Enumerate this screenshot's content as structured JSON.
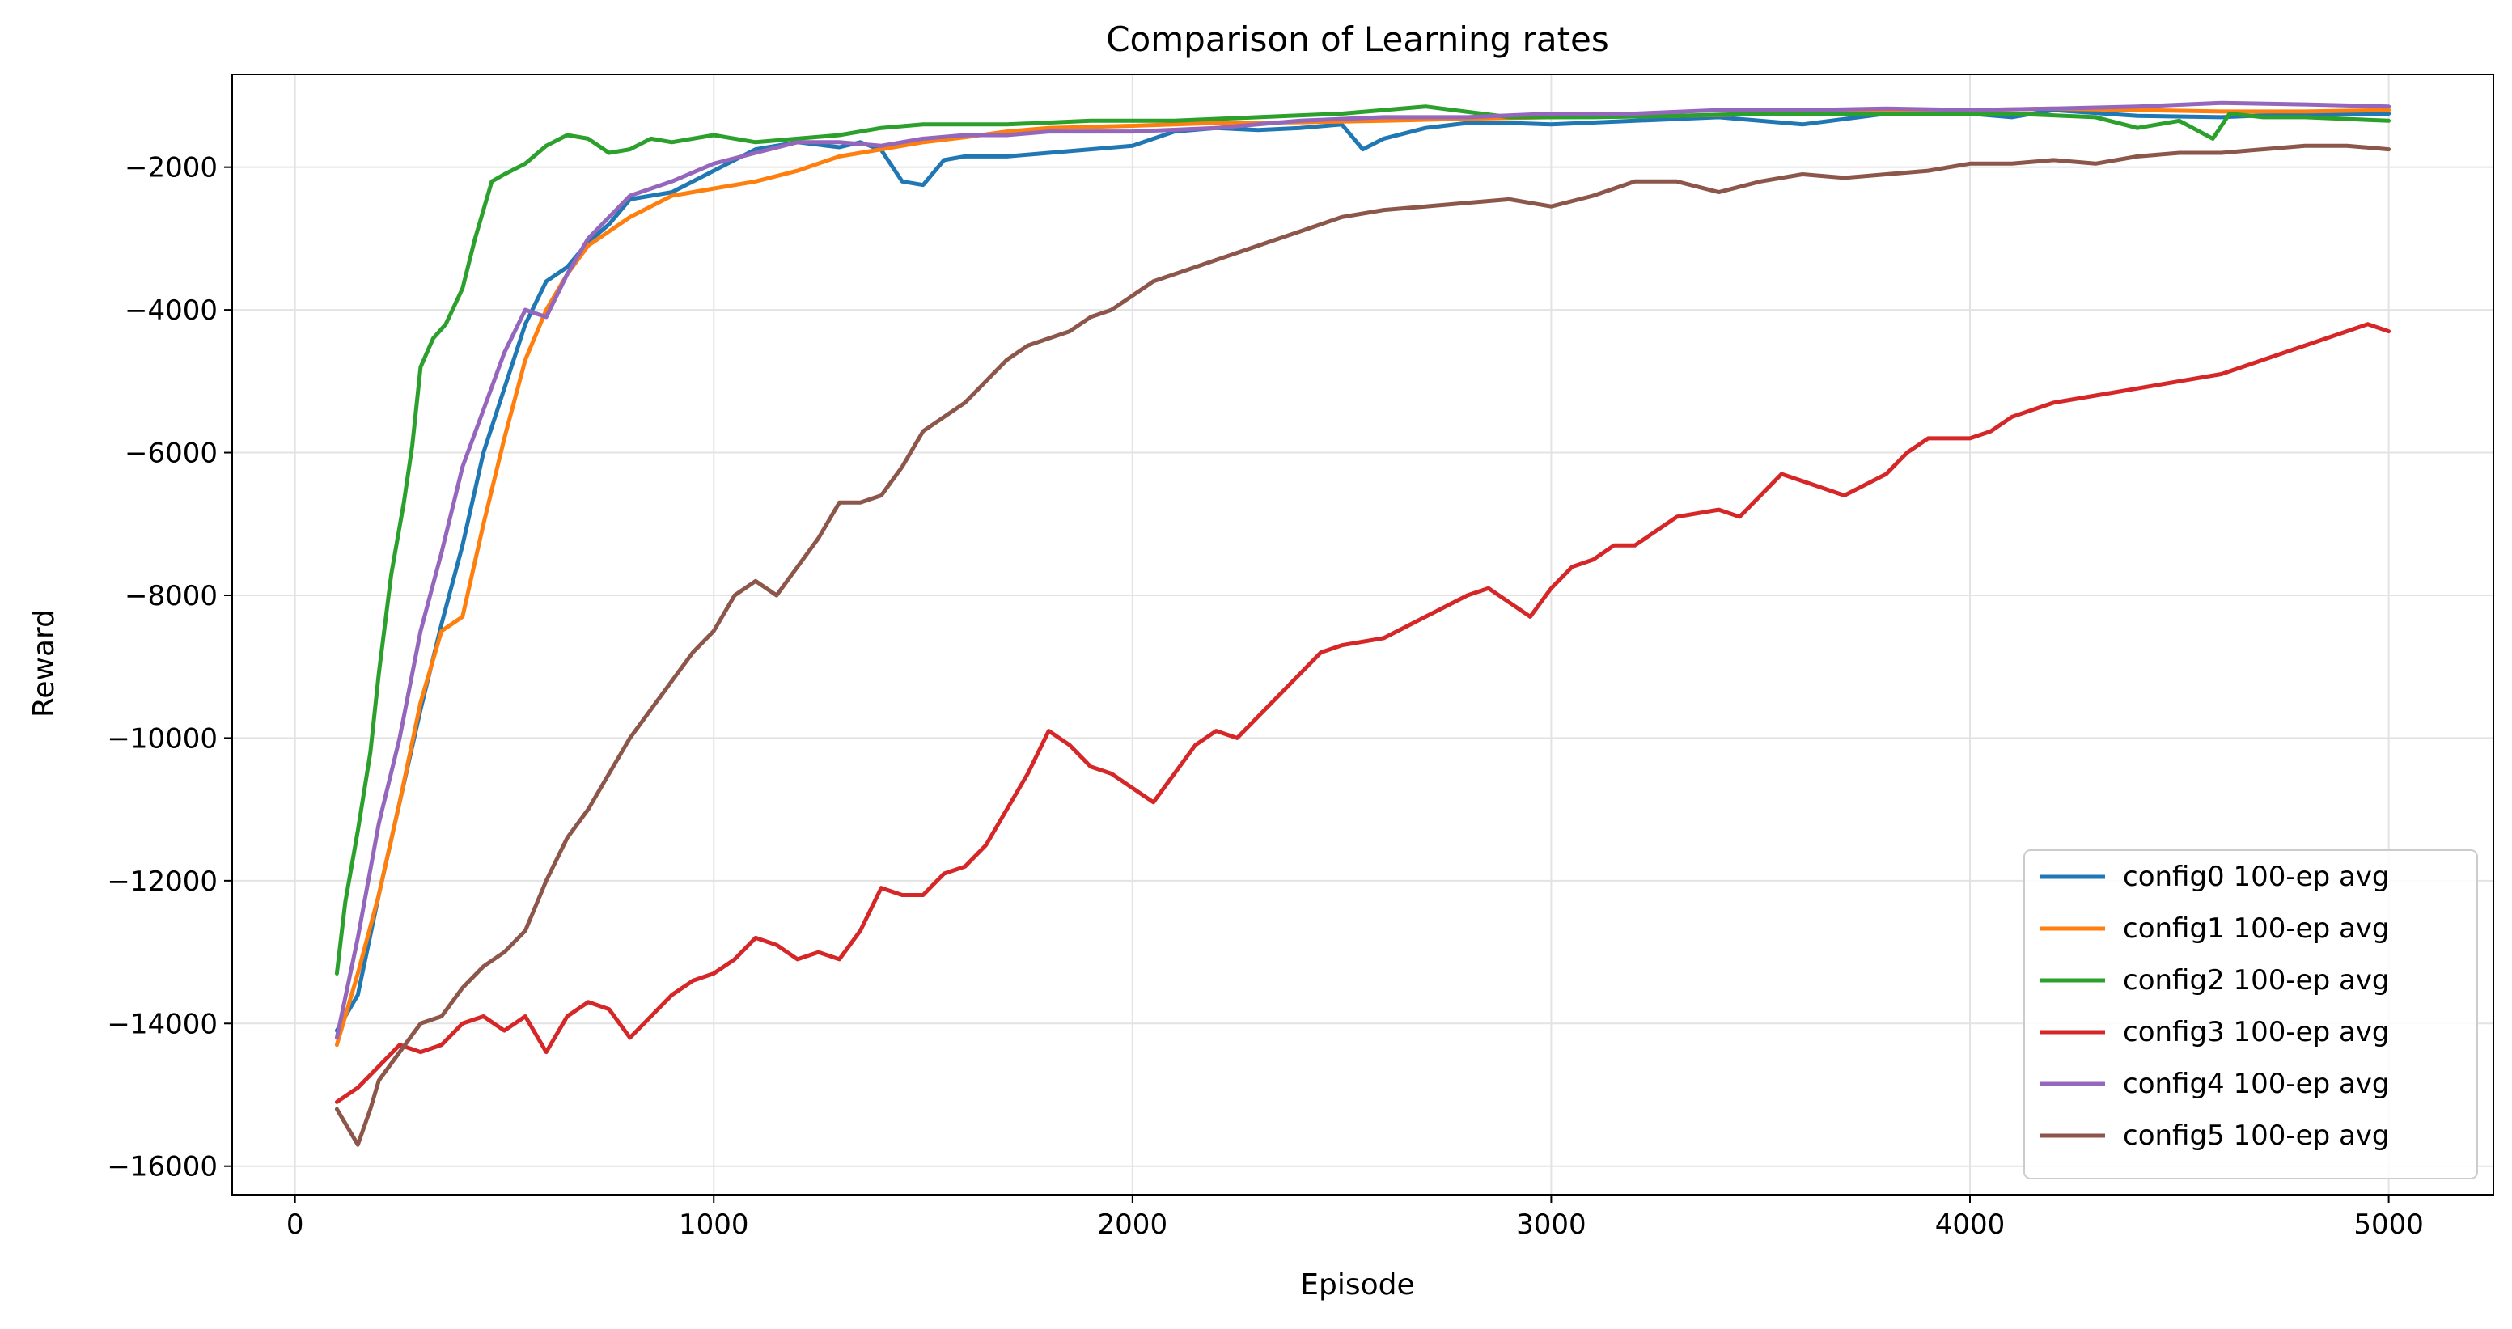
{
  "chart_data": {
    "type": "line",
    "title": "Comparison of Learning rates",
    "xlabel": "Episode",
    "ylabel": "Reward",
    "xlim": [
      -150,
      5250
    ],
    "ylim": [
      -16400,
      -700
    ],
    "xticks": [
      0,
      1000,
      2000,
      3000,
      4000,
      5000
    ],
    "yticks": [
      -16000,
      -14000,
      -12000,
      -10000,
      -8000,
      -6000,
      -4000,
      -2000
    ],
    "xtick_labels": [
      "0",
      "1000",
      "2000",
      "3000",
      "4000",
      "5000"
    ],
    "ytick_labels": [
      "−16000",
      "−14000",
      "−12000",
      "−10000",
      "−8000",
      "−6000",
      "−4000",
      "−2000"
    ],
    "grid": true,
    "legend_position": "lower-right",
    "series": [
      {
        "name": "config0 100-ep avg",
        "color": "#1f77b4",
        "x": [
          100,
          150,
          200,
          250,
          300,
          350,
          400,
          450,
          500,
          550,
          600,
          650,
          700,
          750,
          800,
          900,
          1000,
          1100,
          1200,
          1300,
          1350,
          1400,
          1450,
          1500,
          1550,
          1600,
          1700,
          1800,
          1900,
          2000,
          2100,
          2200,
          2300,
          2400,
          2500,
          2550,
          2600,
          2700,
          2800,
          2900,
          3000,
          3200,
          3400,
          3600,
          3800,
          4000,
          4100,
          4200,
          4400,
          4600,
          4800,
          5000
        ],
        "y": [
          -14100,
          -13600,
          -12200,
          -10900,
          -9600,
          -8400,
          -7300,
          -6000,
          -5100,
          -4200,
          -3600,
          -3400,
          -3050,
          -2800,
          -2450,
          -2350,
          -2050,
          -1750,
          -1650,
          -1720,
          -1650,
          -1760,
          -2200,
          -2250,
          -1900,
          -1850,
          -1850,
          -1800,
          -1750,
          -1700,
          -1500,
          -1450,
          -1480,
          -1450,
          -1400,
          -1750,
          -1600,
          -1450,
          -1380,
          -1380,
          -1400,
          -1350,
          -1300,
          -1400,
          -1250,
          -1250,
          -1300,
          -1200,
          -1280,
          -1300,
          -1250,
          -1250
        ]
      },
      {
        "name": "config1 100-ep avg",
        "color": "#ff7f0e",
        "x": [
          100,
          150,
          200,
          250,
          300,
          350,
          400,
          450,
          500,
          550,
          600,
          650,
          700,
          800,
          900,
          1000,
          1100,
          1200,
          1300,
          1400,
          1500,
          1600,
          1700,
          1800,
          2000,
          2200,
          2400,
          2600,
          2800,
          3000,
          3200,
          3400,
          3600,
          3800,
          4000,
          4200,
          4400,
          4600,
          4800,
          5000
        ],
        "y": [
          -14300,
          -13300,
          -12200,
          -10900,
          -9500,
          -8500,
          -8300,
          -7000,
          -5800,
          -4700,
          -4000,
          -3500,
          -3100,
          -2700,
          -2400,
          -2300,
          -2200,
          -2050,
          -1850,
          -1750,
          -1650,
          -1580,
          -1500,
          -1450,
          -1420,
          -1380,
          -1370,
          -1350,
          -1320,
          -1300,
          -1290,
          -1270,
          -1230,
          -1220,
          -1200,
          -1180,
          -1200,
          -1220,
          -1220,
          -1200
        ]
      },
      {
        "name": "config2 100-ep avg",
        "color": "#2ca02c",
        "x": [
          100,
          120,
          150,
          180,
          200,
          230,
          260,
          280,
          300,
          330,
          360,
          400,
          430,
          470,
          500,
          550,
          600,
          650,
          700,
          750,
          800,
          850,
          900,
          1000,
          1100,
          1200,
          1300,
          1400,
          1500,
          1700,
          1900,
          2100,
          2300,
          2500,
          2700,
          2900,
          3100,
          3300,
          3500,
          3700,
          3900,
          4100,
          4300,
          4400,
          4500,
          4580,
          4620,
          4700,
          4800,
          5000
        ],
        "y": [
          -13300,
          -12300,
          -11300,
          -10200,
          -9100,
          -7700,
          -6700,
          -5900,
          -4800,
          -4400,
          -4200,
          -3700,
          -3000,
          -2200,
          -2100,
          -1950,
          -1700,
          -1550,
          -1600,
          -1800,
          -1750,
          -1600,
          -1650,
          -1550,
          -1650,
          -1600,
          -1550,
          -1450,
          -1400,
          -1400,
          -1350,
          -1350,
          -1300,
          -1250,
          -1150,
          -1300,
          -1300,
          -1280,
          -1250,
          -1250,
          -1250,
          -1250,
          -1300,
          -1450,
          -1350,
          -1600,
          -1250,
          -1300,
          -1300,
          -1350
        ]
      },
      {
        "name": "config3 100-ep avg",
        "color": "#d62728",
        "x": [
          100,
          150,
          200,
          250,
          300,
          350,
          400,
          450,
          500,
          550,
          600,
          650,
          700,
          750,
          800,
          850,
          900,
          950,
          1000,
          1050,
          1100,
          1150,
          1200,
          1250,
          1300,
          1350,
          1400,
          1450,
          1500,
          1550,
          1600,
          1650,
          1700,
          1750,
          1800,
          1850,
          1900,
          1950,
          2000,
          2050,
          2100,
          2150,
          2200,
          2250,
          2300,
          2350,
          2400,
          2450,
          2500,
          2600,
          2700,
          2800,
          2850,
          2900,
          2950,
          3000,
          3050,
          3100,
          3150,
          3200,
          3300,
          3400,
          3450,
          3500,
          3550,
          3600,
          3700,
          3800,
          3850,
          3900,
          4000,
          4050,
          4100,
          4200,
          4300,
          4400,
          4500,
          4600,
          4700,
          4800,
          4900,
          4950,
          5000
        ],
        "y": [
          -15100,
          -14900,
          -14600,
          -14300,
          -14400,
          -14300,
          -14000,
          -13900,
          -14100,
          -13900,
          -14400,
          -13900,
          -13700,
          -13800,
          -14200,
          -13900,
          -13600,
          -13400,
          -13300,
          -13100,
          -12800,
          -12900,
          -13100,
          -13000,
          -13100,
          -12700,
          -12100,
          -12200,
          -12200,
          -11900,
          -11800,
          -11500,
          -11000,
          -10500,
          -9900,
          -10100,
          -10400,
          -10500,
          -10700,
          -10900,
          -10500,
          -10100,
          -9900,
          -10000,
          -9700,
          -9400,
          -9100,
          -8800,
          -8700,
          -8600,
          -8300,
          -8000,
          -7900,
          -8100,
          -8300,
          -7900,
          -7600,
          -7500,
          -7300,
          -7300,
          -6900,
          -6800,
          -6900,
          -6600,
          -6300,
          -6400,
          -6600,
          -6300,
          -6000,
          -5800,
          -5800,
          -5700,
          -5500,
          -5300,
          -5200,
          -5100,
          -5000,
          -4900,
          -4700,
          -4500,
          -4300,
          -4200,
          -4300
        ]
      },
      {
        "name": "config4 100-ep avg",
        "color": "#9467bd",
        "x": [
          100,
          150,
          200,
          250,
          300,
          350,
          400,
          450,
          500,
          550,
          600,
          650,
          700,
          800,
          900,
          1000,
          1100,
          1200,
          1300,
          1400,
          1500,
          1600,
          1700,
          1800,
          2000,
          2200,
          2400,
          2600,
          2800,
          3000,
          3200,
          3400,
          3600,
          3800,
          4000,
          4200,
          4400,
          4600,
          4800,
          5000
        ],
        "y": [
          -14200,
          -12800,
          -11200,
          -10000,
          -8500,
          -7400,
          -6200,
          -5400,
          -4600,
          -4000,
          -4100,
          -3500,
          -3000,
          -2400,
          -2200,
          -1950,
          -1800,
          -1650,
          -1650,
          -1700,
          -1600,
          -1550,
          -1550,
          -1500,
          -1500,
          -1450,
          -1350,
          -1300,
          -1300,
          -1250,
          -1250,
          -1200,
          -1200,
          -1180,
          -1200,
          -1180,
          -1150,
          -1100,
          -1120,
          -1150
        ]
      },
      {
        "name": "config5 100-ep avg",
        "color": "#8c564b",
        "x": [
          100,
          120,
          150,
          180,
          200,
          250,
          300,
          350,
          400,
          450,
          500,
          550,
          600,
          650,
          700,
          750,
          800,
          850,
          900,
          950,
          1000,
          1050,
          1100,
          1150,
          1200,
          1250,
          1300,
          1350,
          1400,
          1450,
          1500,
          1550,
          1600,
          1650,
          1700,
          1750,
          1800,
          1850,
          1900,
          1950,
          2000,
          2050,
          2100,
          2200,
          2300,
          2400,
          2500,
          2600,
          2700,
          2800,
          2900,
          3000,
          3100,
          3150,
          3200,
          3300,
          3400,
          3500,
          3600,
          3700,
          3800,
          3900,
          4000,
          4100,
          4200,
          4300,
          4400,
          4500,
          4600,
          4700,
          4800,
          4900,
          5000
        ],
        "y": [
          -15200,
          -15400,
          -15700,
          -15200,
          -14800,
          -14400,
          -14000,
          -13900,
          -13500,
          -13200,
          -13000,
          -12700,
          -12000,
          -11400,
          -11000,
          -10500,
          -10000,
          -9600,
          -9200,
          -8800,
          -8500,
          -8000,
          -7800,
          -8000,
          -7600,
          -7200,
          -6700,
          -6700,
          -6600,
          -6200,
          -5700,
          -5500,
          -5300,
          -5000,
          -4700,
          -4500,
          -4400,
          -4300,
          -4100,
          -4000,
          -3800,
          -3600,
          -3500,
          -3300,
          -3100,
          -2900,
          -2700,
          -2600,
          -2550,
          -2500,
          -2450,
          -2550,
          -2400,
          -2300,
          -2200,
          -2200,
          -2350,
          -2200,
          -2100,
          -2150,
          -2100,
          -2050,
          -1950,
          -1950,
          -1900,
          -1950,
          -1850,
          -1800,
          -1800,
          -1750,
          -1700,
          -1700,
          -1750
        ]
      }
    ]
  }
}
